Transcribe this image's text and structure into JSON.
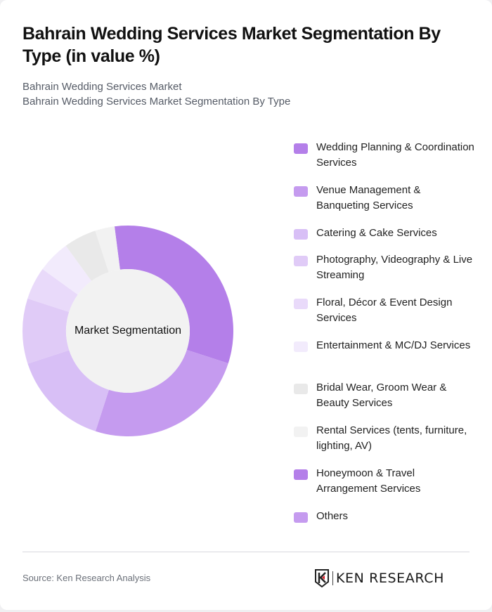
{
  "header": {
    "title": "Bahrain Wedding Services Market Segmentation By Type (in value %)",
    "subtitle_line1": "Bahrain Wedding Services Market",
    "subtitle_line2": "Bahrain Wedding Services Market Segmentation By Type"
  },
  "chart": {
    "center_label": "Market Segmentation"
  },
  "legend": {
    "items": [
      {
        "label": "Wedding Planning & Coordination Services",
        "color": "#b47fe9"
      },
      {
        "label": "Venue Management & Banqueting Services",
        "color": "#c59bef"
      },
      {
        "label": "Catering & Cake Services",
        "color": "#d8bff6"
      },
      {
        "label": "Photography, Videography & Live Streaming",
        "color": "#e0cbf7"
      },
      {
        "label": "Floral, Décor & Event Design Services",
        "color": "#e9dafa"
      },
      {
        "label": "Entertainment & MC/DJ Services",
        "color": "#f2ebfc"
      },
      {
        "label": "Bridal Wear, Groom Wear & Beauty Services",
        "color": "#e9e9e9"
      },
      {
        "label": "Rental Services (tents, furniture, lighting, AV)",
        "color": "#f2f2f2"
      },
      {
        "label": "Honeymoon & Travel Arrangement Services",
        "color": "#b47fe9"
      },
      {
        "label": "Others",
        "color": "#c59bef"
      }
    ]
  },
  "footer": {
    "source": "Source: Ken Research Analysis",
    "logo_text": "KEN RESEARCH"
  },
  "chart_data": {
    "type": "pie",
    "title": "Bahrain Wedding Services Market Segmentation By Type (in value %)",
    "subtitle": "Bahrain Wedding Services Market Segmentation By Type",
    "center_label": "Market Segmentation",
    "donut": true,
    "start_angle_deg": -7.3,
    "categories": [
      "Wedding Planning & Coordination Services",
      "Venue Management & Banqueting Services",
      "Catering & Cake Services",
      "Photography, Videography & Live Streaming",
      "Floral, Décor & Event Design Services",
      "Entertainment & MC/DJ Services",
      "Bridal Wear, Groom Wear & Beauty Services",
      "Rental Services (tents, furniture, lighting, AV)",
      "Honeymoon & Travel Arrangement Services",
      "Others"
    ],
    "values": [
      32,
      25,
      15,
      10,
      5,
      5,
      5,
      3,
      0,
      0
    ],
    "colors": [
      "#b47fe9",
      "#c59bef",
      "#d8bff6",
      "#e0cbf7",
      "#e9dafa",
      "#f2ebfc",
      "#e9e9e9",
      "#f2f2f2",
      "#b47fe9",
      "#c59bef"
    ],
    "legend_position": "right",
    "unit": "%"
  }
}
